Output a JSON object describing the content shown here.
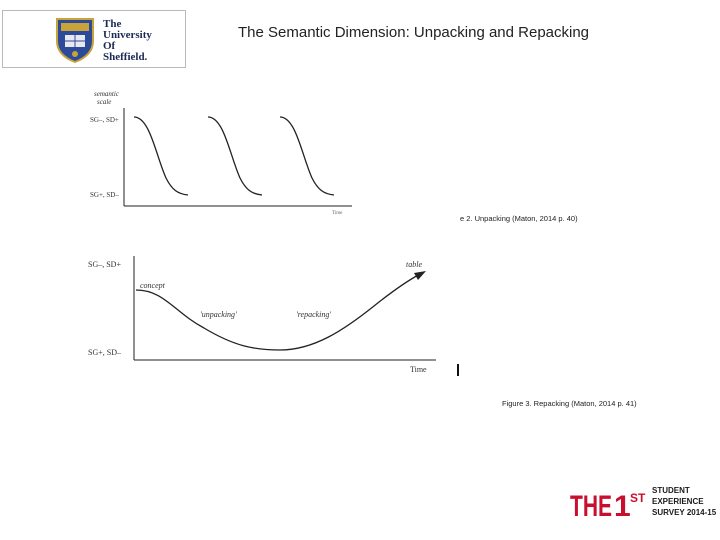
{
  "logo": {
    "name_lines": [
      "The",
      "University",
      "Of",
      "Sheffield."
    ]
  },
  "title": "The Semantic Dimension: Unpacking and Repacking",
  "figure1": {
    "axis_title_line1": "semantic",
    "axis_title_line2": "scale",
    "y_top_label": "SG–, SD+",
    "y_bottom_label": "SG+, SD–",
    "x_label": "Time",
    "caption": "e 2. Unpacking (Maton, 2014 p. 40)"
  },
  "figure2": {
    "y_top_label": "SG–, SD+",
    "y_bottom_label": "SG+, SD–",
    "start_label": "concept",
    "end_label": "table",
    "unpacking_label": "'unpacking'",
    "repacking_label": "'repacking'",
    "x_label": "Time",
    "caption": "Figure 3. Repacking (Maton, 2014 p. 41)"
  },
  "survey_logo": {
    "the": "THE",
    "first": "1",
    "first_sup": "ST",
    "line1": "STUDENT",
    "line2": "EXPERIENCE",
    "line3": "SURVEY 2014-15"
  }
}
